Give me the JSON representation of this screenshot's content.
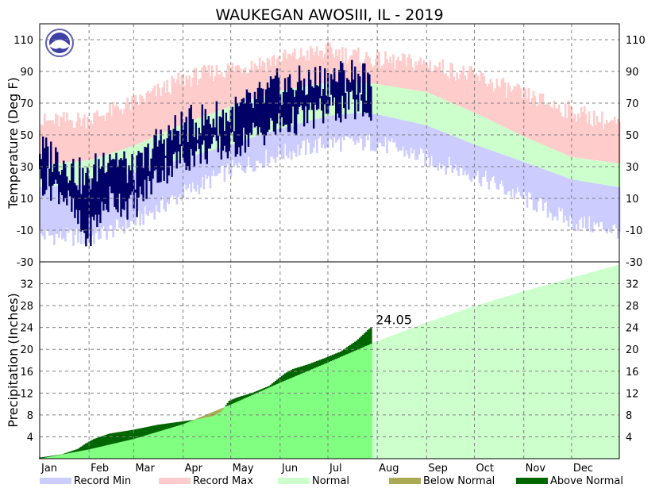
{
  "chart_data": {
    "type": "area",
    "title": "WAUKEGAN  AWOSIII, IL - 2019",
    "months": [
      "Jan",
      "Feb",
      "Mar",
      "Apr",
      "May",
      "Jun",
      "Jul",
      "Aug",
      "Sep",
      "Oct",
      "Nov",
      "Dec"
    ],
    "month_start_day": [
      1,
      32,
      60,
      91,
      121,
      152,
      182,
      213,
      244,
      274,
      305,
      335
    ],
    "days_in_year": 365,
    "data_through_day": 209,
    "legend": [
      "Record Min",
      "Record Max",
      "Normal",
      "Below Normal",
      "Above Normal"
    ],
    "legend_placement": "bottom",
    "grid": true,
    "colors": {
      "record_min": "#ccccff",
      "record_max": "#ffcccc",
      "normal": "#ccffcc",
      "below_normal": "#aaaa55",
      "above_normal": "#006600",
      "normal_to_date": "#80ff80",
      "observed_temp": "#000066"
    },
    "temperature": {
      "ylabel": "Temperature (Deg F)",
      "ylim": [
        -30,
        120
      ],
      "ticks": [
        -30,
        -10,
        10,
        30,
        50,
        70,
        90,
        110
      ],
      "normal_high": {
        "day": [
          1,
          32,
          60,
          91,
          121,
          152,
          182,
          200,
          213,
          244,
          274,
          305,
          335,
          365
        ],
        "value": [
          31,
          34,
          43,
          57,
          68,
          78,
          83,
          83,
          82,
          77,
          64,
          49,
          36,
          32
        ]
      },
      "normal_low": {
        "day": [
          1,
          32,
          60,
          91,
          121,
          152,
          182,
          200,
          213,
          244,
          274,
          305,
          335,
          365
        ],
        "value": [
          17,
          19,
          26,
          35,
          44,
          54,
          62,
          64,
          63,
          56,
          44,
          33,
          22,
          17
        ]
      },
      "record_high": {
        "day": [
          1,
          32,
          60,
          91,
          121,
          152,
          182,
          213,
          244,
          274,
          305,
          335,
          365
        ],
        "value": [
          58,
          60,
          70,
          85,
          92,
          98,
          103,
          97,
          95,
          87,
          75,
          65,
          56
        ]
      },
      "record_low": {
        "day": [
          1,
          32,
          60,
          91,
          121,
          152,
          182,
          213,
          244,
          274,
          305,
          335,
          365
        ],
        "value": [
          -13,
          -15,
          -5,
          13,
          28,
          38,
          45,
          45,
          35,
          25,
          10,
          -5,
          -10
        ]
      },
      "observed_high_anchor": {
        "day": [
          1,
          15,
          30,
          45,
          60,
          75,
          90,
          105,
          120,
          135,
          150,
          165,
          180,
          195,
          205,
          209
        ],
        "value": [
          40,
          35,
          20,
          40,
          25,
          45,
          55,
          60,
          62,
          70,
          80,
          82,
          85,
          88,
          86,
          75
        ]
      },
      "observed_low_anchor": {
        "day": [
          1,
          15,
          30,
          45,
          60,
          75,
          90,
          105,
          120,
          135,
          150,
          165,
          180,
          195,
          205,
          209
        ],
        "value": [
          22,
          15,
          -15,
          10,
          5,
          25,
          35,
          40,
          42,
          50,
          55,
          60,
          65,
          68,
          68,
          55
        ]
      }
    },
    "precipitation": {
      "ylabel": "Precipitation (Inches)",
      "ylim": [
        0,
        36
      ],
      "ticks": [
        4,
        8,
        12,
        16,
        20,
        24,
        28,
        32
      ],
      "annotation": "24.05",
      "normal_cumulative": {
        "day": [
          1,
          32,
          60,
          91,
          121,
          152,
          182,
          213,
          244,
          274,
          305,
          335,
          365
        ],
        "value": [
          0,
          1.7,
          3.6,
          6.3,
          9.9,
          13.9,
          17.6,
          21.5,
          24.9,
          27.9,
          30.6,
          33.1,
          35.5
        ]
      },
      "observed_cumulative": {
        "day": [
          1,
          15,
          25,
          30,
          35,
          45,
          60,
          75,
          90,
          100,
          110,
          115,
          120,
          125,
          135,
          145,
          155,
          160,
          170,
          180,
          190,
          200,
          209
        ],
        "value": [
          0.2,
          0.8,
          1.8,
          2.8,
          3.6,
          4.6,
          5.3,
          6.2,
          6.8,
          7.2,
          7.8,
          8.6,
          10.6,
          11.2,
          12.1,
          13.3,
          15.6,
          16.4,
          17.3,
          18.4,
          19.6,
          21.6,
          24.05
        ]
      }
    },
    "right_axis_temp_ticks": [
      110,
      90,
      70,
      50,
      30,
      10,
      -10,
      -30
    ],
    "right_axis_precip_ticks": [
      32,
      28,
      24,
      20,
      16,
      12,
      8,
      4
    ]
  }
}
